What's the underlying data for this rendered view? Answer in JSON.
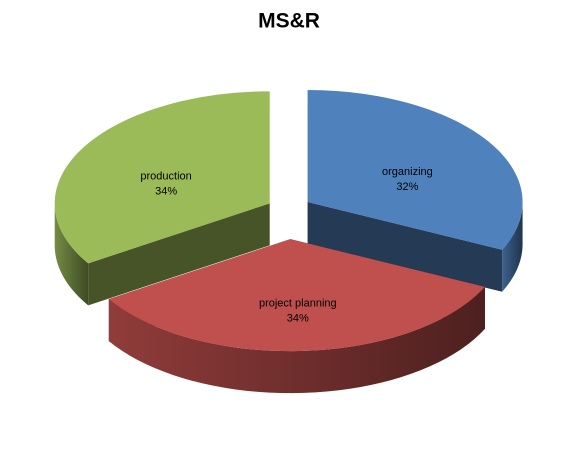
{
  "chart_data": {
    "type": "pie",
    "title": "MS&R",
    "categories": [
      "organizing",
      "project planning",
      "production"
    ],
    "values": [
      32,
      34,
      34
    ],
    "value_labels": [
      "32%",
      "34%",
      "34%"
    ],
    "colors": [
      "#4f81bd",
      "#c0504d",
      "#9bbb59"
    ],
    "exploded": true
  }
}
